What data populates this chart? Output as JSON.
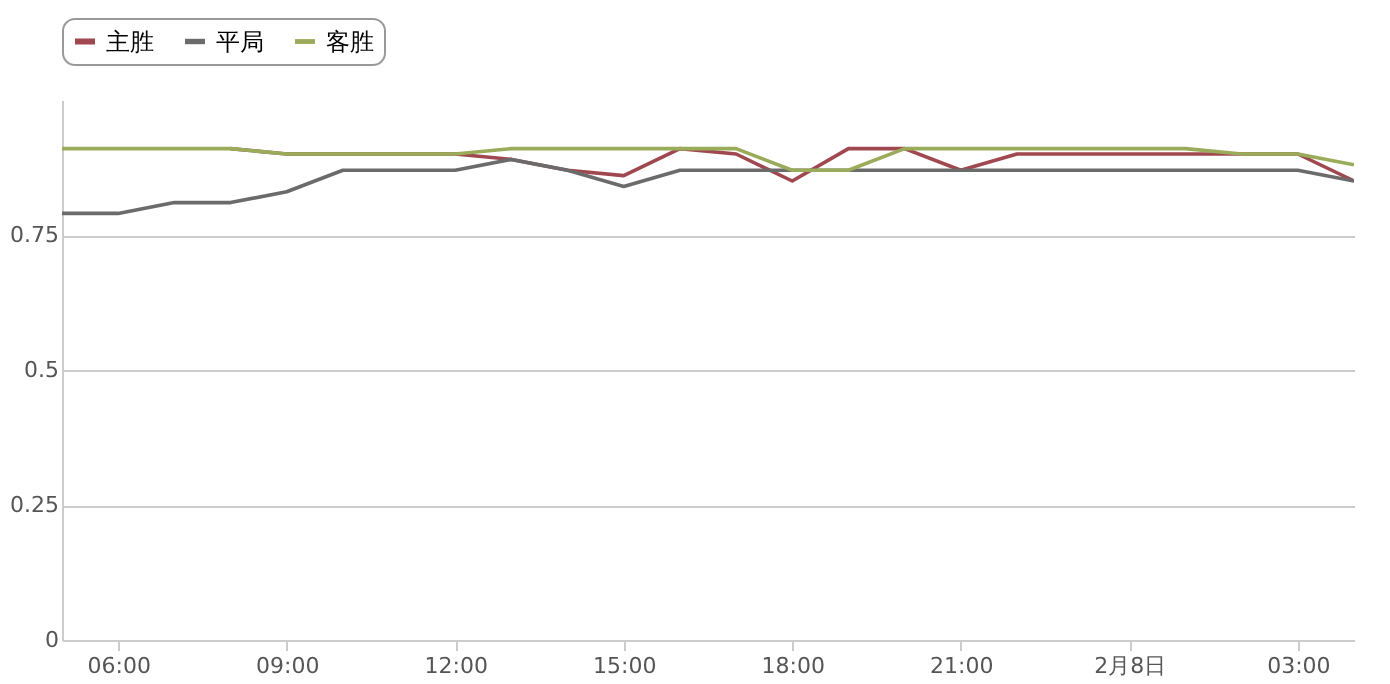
{
  "chart_data": {
    "type": "line",
    "x": [
      "--02-07T05:00",
      "--02-07T06:00",
      "--02-07T07:00",
      "--02-07T08:00",
      "--02-07T09:00",
      "--02-07T10:00",
      "--02-07T11:00",
      "--02-07T12:00",
      "--02-07T13:00",
      "--02-07T14:00",
      "--02-07T15:00",
      "--02-07T16:00",
      "--02-07T17:00",
      "--02-07T18:00",
      "--02-07T19:00",
      "--02-07T20:00",
      "--02-07T21:00",
      "--02-07T22:00",
      "--02-07T23:00",
      "--02-08T00:00",
      "--02-08T01:00",
      "--02-08T02:00",
      "--02-08T03:00",
      "--02-08T04:00"
    ],
    "xlim": [
      "--02-07T05:00",
      "--02-08T04:00"
    ],
    "xticks": [
      {
        "value": "--02-07T06:00",
        "label": "06:00"
      },
      {
        "value": "--02-07T09:00",
        "label": "09:00"
      },
      {
        "value": "--02-07T12:00",
        "label": "12:00"
      },
      {
        "value": "--02-07T15:00",
        "label": "15:00"
      },
      {
        "value": "--02-07T18:00",
        "label": "18:00"
      },
      {
        "value": "--02-07T21:00",
        "label": "21:00"
      },
      {
        "value": "--02-08T00:00",
        "label": "2月8日"
      },
      {
        "value": "--02-08T03:00",
        "label": "03:00"
      }
    ],
    "ylim": [
      0,
      1
    ],
    "yticks": [
      0,
      0.25,
      0.5,
      0.75
    ],
    "grid": "y",
    "legend": "top",
    "marker": "none",
    "line_style": "solid",
    "series": [
      {
        "name": "主胜",
        "color": "#a0484f",
        "values": [
          null,
          null,
          null,
          0.91,
          0.9,
          0.9,
          0.9,
          0.9,
          0.89,
          0.87,
          0.86,
          0.91,
          0.9,
          0.85,
          0.91,
          0.91,
          0.87,
          0.9,
          0.9,
          0.9,
          0.9,
          0.9,
          0.9,
          0.85
        ]
      },
      {
        "name": "平局",
        "color": "#6b6b6b",
        "values": [
          0.79,
          0.79,
          0.81,
          0.81,
          0.83,
          0.87,
          0.87,
          0.87,
          0.89,
          0.87,
          0.84,
          0.87,
          0.87,
          0.87,
          0.87,
          0.87,
          0.87,
          0.87,
          0.87,
          0.87,
          0.87,
          0.87,
          0.87,
          0.85
        ]
      },
      {
        "name": "客胜",
        "color": "#9aab5a",
        "values": [
          0.91,
          0.91,
          0.91,
          0.91,
          0.9,
          0.9,
          0.9,
          0.9,
          0.91,
          0.91,
          0.91,
          0.91,
          0.91,
          0.87,
          0.87,
          0.91,
          0.91,
          0.91,
          0.91,
          0.91,
          0.91,
          0.9,
          0.9,
          0.88
        ]
      }
    ]
  }
}
